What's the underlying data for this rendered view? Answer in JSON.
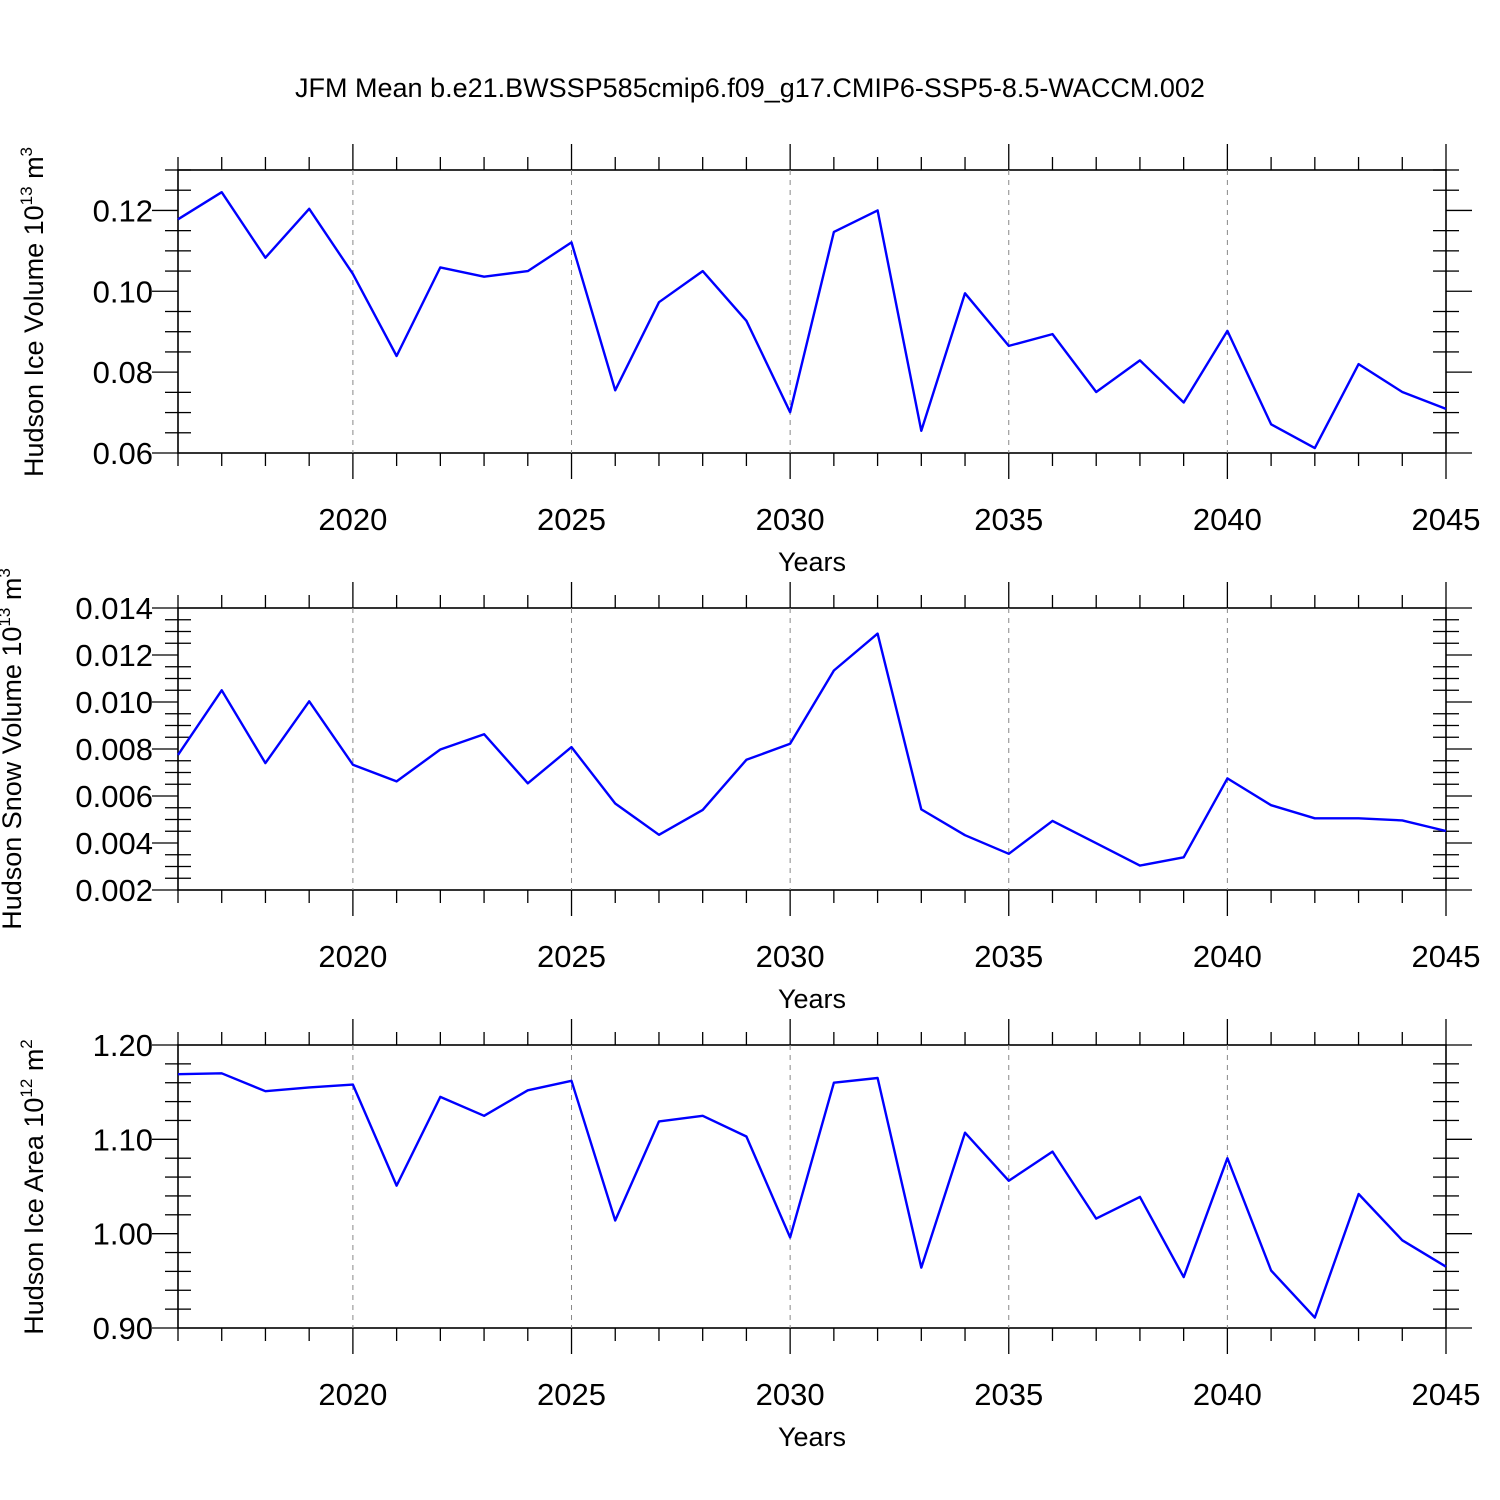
{
  "title": "JFM Mean b.e21.BWSSP585cmip6.f09_g17.CMIP6-SSP5-8.5-WACCM.002",
  "colors": {
    "line": "#0000ff",
    "axis": "#000000",
    "grid": "#888888"
  },
  "chart_data": [
    {
      "type": "line",
      "ylabel_prefix": "Hudson Ice Volume 10",
      "ylabel_exp": "13",
      "ylabel_unit": " m",
      "ylabel_unit_exp": "3",
      "xlabel": "Years",
      "xlim": [
        2016,
        2045
      ],
      "ylim": [
        0.06,
        0.13
      ],
      "xticks": [
        2020,
        2025,
        2030,
        2035,
        2040,
        2045
      ],
      "xtick_labels": [
        "2020",
        "2025",
        "2030",
        "2035",
        "2040",
        "2045"
      ],
      "yticks": [
        0.06,
        0.08,
        0.1,
        0.12
      ],
      "ytick_labels": [
        "0.06",
        "0.08",
        "0.10",
        "0.12"
      ],
      "ymin_step": 0.005,
      "series": [
        {
          "name": "Hudson Ice Volume",
          "x": [
            2016,
            2017,
            2018,
            2019,
            2020,
            2021,
            2022,
            2023,
            2024,
            2025,
            2026,
            2027,
            2028,
            2029,
            2030,
            2031,
            2032,
            2033,
            2034,
            2035,
            2036,
            2037,
            2038,
            2039,
            2040,
            2041,
            2042,
            2043,
            2044,
            2045
          ],
          "values": [
            0.1178,
            0.1245,
            0.1083,
            0.1204,
            0.1043,
            0.084,
            0.1059,
            0.1036,
            0.105,
            0.1121,
            0.0755,
            0.0973,
            0.105,
            0.0927,
            0.0701,
            0.1147,
            0.12,
            0.0655,
            0.0995,
            0.0865,
            0.0894,
            0.0751,
            0.0829,
            0.0725,
            0.0902,
            0.0671,
            0.0612,
            0.082,
            0.0751,
            0.0709
          ]
        }
      ]
    },
    {
      "type": "line",
      "ylabel_prefix": "Hudson Snow Volume 10",
      "ylabel_exp": "13",
      "ylabel_unit": " m",
      "ylabel_unit_exp": "3",
      "xlabel": "Years",
      "xlim": [
        2016,
        2045
      ],
      "ylim": [
        0.002,
        0.014
      ],
      "xticks": [
        2020,
        2025,
        2030,
        2035,
        2040,
        2045
      ],
      "xtick_labels": [
        "2020",
        "2025",
        "2030",
        "2035",
        "2040",
        "2045"
      ],
      "yticks": [
        0.002,
        0.004,
        0.006,
        0.008,
        0.01,
        0.012,
        0.014
      ],
      "ytick_labels": [
        "0.002",
        "0.004",
        "0.006",
        "0.008",
        "0.010",
        "0.012",
        "0.014"
      ],
      "ymin_step": 0.0005,
      "series": [
        {
          "name": "Hudson Snow Volume",
          "x": [
            2016,
            2017,
            2018,
            2019,
            2020,
            2021,
            2022,
            2023,
            2024,
            2025,
            2026,
            2027,
            2028,
            2029,
            2030,
            2031,
            2032,
            2033,
            2034,
            2035,
            2036,
            2037,
            2038,
            2039,
            2040,
            2041,
            2042,
            2043,
            2044,
            2045
          ],
          "values": [
            0.00775,
            0.0105,
            0.0074,
            0.01003,
            0.00733,
            0.00662,
            0.00798,
            0.00863,
            0.00654,
            0.00808,
            0.00568,
            0.00435,
            0.00541,
            0.00754,
            0.00822,
            0.01134,
            0.01291,
            0.00543,
            0.00433,
            0.00354,
            0.00494,
            0.00399,
            0.00304,
            0.00339,
            0.00675,
            0.00561,
            0.00505,
            0.00505,
            0.00496,
            0.00451
          ]
        }
      ]
    },
    {
      "type": "line",
      "ylabel_prefix": "Hudson Ice Area 10",
      "ylabel_exp": "12",
      "ylabel_unit": " m",
      "ylabel_unit_exp": "2",
      "xlabel": "Years",
      "xlim": [
        2016,
        2045
      ],
      "ylim": [
        0.9,
        1.2
      ],
      "xticks": [
        2020,
        2025,
        2030,
        2035,
        2040,
        2045
      ],
      "xtick_labels": [
        "2020",
        "2025",
        "2030",
        "2035",
        "2040",
        "2045"
      ],
      "yticks": [
        0.9,
        1.0,
        1.1,
        1.2
      ],
      "ytick_labels": [
        "0.90",
        "1.00",
        "1.10",
        "1.20"
      ],
      "ymin_step": 0.02,
      "series": [
        {
          "name": "Hudson Ice Area",
          "x": [
            2016,
            2017,
            2018,
            2019,
            2020,
            2021,
            2022,
            2023,
            2024,
            2025,
            2026,
            2027,
            2028,
            2029,
            2030,
            2031,
            2032,
            2033,
            2034,
            2035,
            2036,
            2037,
            2038,
            2039,
            2040,
            2041,
            2042,
            2043,
            2044,
            2045
          ],
          "values": [
            1.169,
            1.17,
            1.151,
            1.155,
            1.158,
            1.051,
            1.145,
            1.125,
            1.152,
            1.162,
            1.014,
            1.119,
            1.125,
            1.103,
            0.996,
            1.16,
            1.165,
            0.964,
            1.107,
            1.056,
            1.087,
            1.016,
            1.039,
            0.954,
            1.08,
            0.961,
            0.911,
            1.042,
            0.993,
            0.965
          ]
        }
      ]
    }
  ]
}
